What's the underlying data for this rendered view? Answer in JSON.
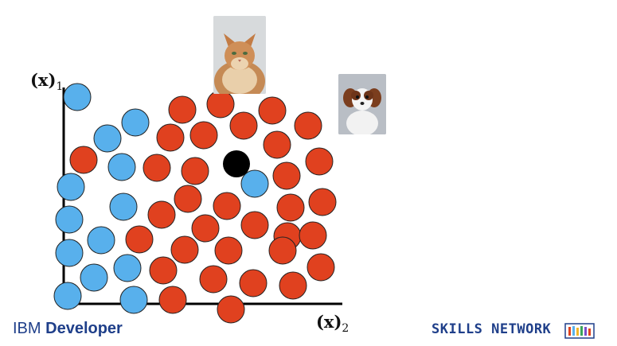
{
  "axes": {
    "y_label": {
      "vec": "(x)",
      "sub": "1"
    },
    "x_label": {
      "vec": "(x)",
      "sub": "2"
    }
  },
  "images": {
    "cat": "cat-photo",
    "dog": "dog-photo"
  },
  "colors": {
    "class_a": "#58b0ec",
    "class_b": "#e0411f",
    "query": "#000000",
    "axis": "#000000",
    "brand": "#1f3f8a"
  },
  "branding": {
    "left_prefix": "IBM ",
    "left_main": "Developer",
    "right": "SKILLS NETWORK",
    "right_icon": "books-icon"
  }
}
